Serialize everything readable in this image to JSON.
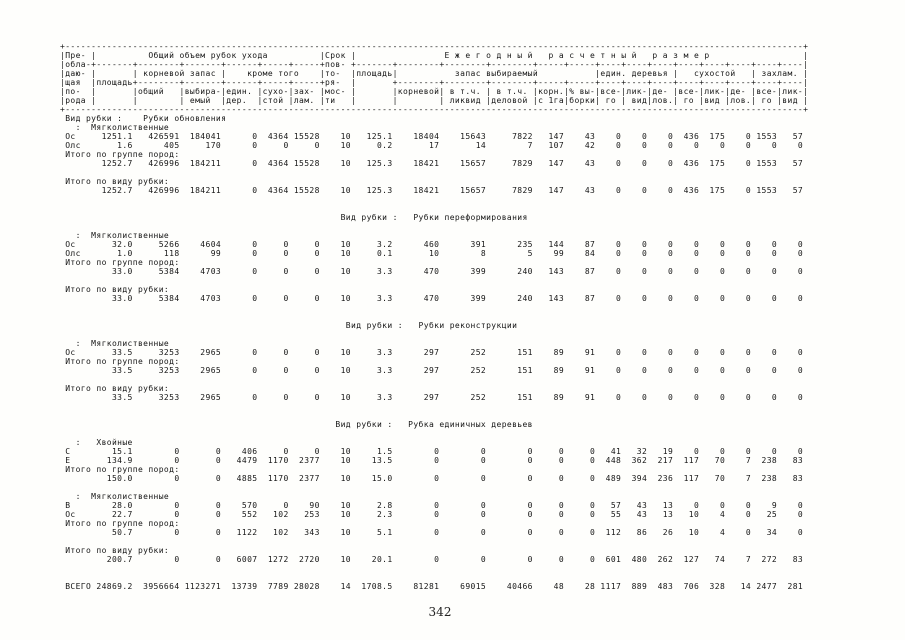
{
  "page_number": "342",
  "table": {
    "header": {
      "lines": [
        [
          [
            0,
            0,
            "Пре-",
            "|"
          ],
          [
            1,
            6,
            "Общий объем рубок ухода",
            "|"
          ],
          [
            7,
            7,
            "Срок",
            "|"
          ],
          [
            8,
            21,
            "Е ж е г о д н ы й   р а с ч е т н ы й   р а з м е р",
            "|"
          ]
        ],
        [
          [
            0,
            0,
            "обла-",
            "+"
          ],
          [
            1,
            6,
            "---",
            "+"
          ],
          [
            7,
            7,
            "пов-",
            "+"
          ],
          [
            8,
            21,
            "---",
            "|"
          ]
        ],
        [
          [
            0,
            0,
            "даю-",
            "|"
          ],
          [
            1,
            1,
            "",
            "|"
          ],
          [
            2,
            3,
            "корневой запас",
            "|"
          ],
          [
            4,
            6,
            "кроме того",
            "|"
          ],
          [
            7,
            7,
            "то-",
            "|"
          ],
          [
            8,
            8,
            "площадь",
            "|"
          ],
          [
            9,
            13,
            "запас выбираемый",
            "|"
          ],
          [
            14,
            16,
            "един. деревья",
            "|"
          ],
          [
            17,
            19,
            "сухостой",
            "|"
          ],
          [
            20,
            21,
            "захлам.",
            "|"
          ]
        ],
        [
          [
            0,
            0,
            "щая",
            "|"
          ],
          [
            1,
            1,
            "площадь",
            "+"
          ],
          [
            2,
            6,
            "---",
            "+"
          ],
          [
            7,
            7,
            "ря-",
            "|"
          ],
          [
            8,
            8,
            "",
            "+"
          ],
          [
            9,
            21,
            "---",
            "|"
          ]
        ],
        [
          [
            0,
            0,
            "по-",
            "|"
          ],
          [
            1,
            1,
            "",
            "|"
          ],
          [
            2,
            2,
            "общий",
            "|"
          ],
          [
            3,
            3,
            "выбира-",
            "|"
          ],
          [
            4,
            4,
            "един.",
            "|"
          ],
          [
            5,
            5,
            "сухо-",
            "|"
          ],
          [
            6,
            6,
            "зах-",
            "|"
          ],
          [
            7,
            7,
            "мос-",
            "|"
          ],
          [
            8,
            8,
            "",
            "|"
          ],
          [
            9,
            9,
            "корневой",
            "|"
          ],
          [
            10,
            10,
            " в т.ч.",
            "|"
          ],
          [
            11,
            11,
            " в т.ч.",
            "|"
          ],
          [
            12,
            12,
            "корн.",
            "|"
          ],
          [
            13,
            13,
            "% вы-",
            "|"
          ],
          [
            14,
            14,
            "все-",
            "|"
          ],
          [
            15,
            15,
            "лик-",
            "|"
          ],
          [
            16,
            16,
            "де-",
            "|"
          ],
          [
            17,
            17,
            "все-",
            "|"
          ],
          [
            18,
            18,
            "лик-",
            "|"
          ],
          [
            19,
            19,
            "де-",
            "|"
          ],
          [
            20,
            20,
            "все-",
            "|"
          ],
          [
            21,
            21,
            "лик-",
            "|"
          ]
        ],
        [
          [
            0,
            0,
            "рода",
            "|"
          ],
          [
            1,
            1,
            "",
            "|"
          ],
          [
            2,
            2,
            "",
            "|"
          ],
          [
            3,
            3,
            " емый",
            "|"
          ],
          [
            4,
            4,
            "дер.",
            "|"
          ],
          [
            5,
            5,
            "стой",
            "|"
          ],
          [
            6,
            6,
            "лам.",
            "|"
          ],
          [
            7,
            7,
            "ти",
            "|"
          ],
          [
            8,
            8,
            "",
            "|"
          ],
          [
            9,
            9,
            "",
            "|"
          ],
          [
            10,
            10,
            " ликвид",
            "|"
          ],
          [
            11,
            11,
            "деловой",
            "|"
          ],
          [
            12,
            12,
            "с 1га",
            "|"
          ],
          [
            13,
            13,
            "борки",
            "|"
          ],
          [
            14,
            14,
            " го",
            "|"
          ],
          [
            15,
            15,
            " вид",
            "|"
          ],
          [
            16,
            16,
            "лов.",
            "|"
          ],
          [
            17,
            17,
            " го",
            "|"
          ],
          [
            18,
            18,
            "вид",
            "|"
          ],
          [
            19,
            19,
            "лов.",
            "|"
          ],
          [
            20,
            20,
            " го",
            "|"
          ],
          [
            21,
            21,
            "вид",
            "|"
          ]
        ]
      ]
    },
    "sections": [
      {
        "title": "Вид рубки :    Рубки обновления",
        "title_centered": false,
        "groups": [
          {
            "species_group": "   :  Мягколиственные",
            "rows": [
              {
                "label": "Ос",
                "values": [
                  "1251.1",
                  "426591",
                  "184041",
                  "0",
                  "4364",
                  "15528",
                  "10",
                  "125.1",
                  "18404",
                  "15643",
                  "7822",
                  "147",
                  "43",
                  "0",
                  "0",
                  "0",
                  "436",
                  "175",
                  "0",
                  "1553",
                  "57"
                ]
              },
              {
                "label": "Олс",
                "values": [
                  "1.6",
                  "405",
                  "170",
                  "0",
                  "0",
                  "0",
                  "10",
                  "0.2",
                  "17",
                  "14",
                  "7",
                  "107",
                  "42",
                  "0",
                  "0",
                  "0",
                  "0",
                  "0",
                  "0",
                  "0",
                  "0"
                ]
              }
            ],
            "subtotal_label": "Итого по группе пород:",
            "subtotal_values": [
              "1252.7",
              "426996",
              "184211",
              "0",
              "4364",
              "15528",
              "10",
              "125.3",
              "18421",
              "15657",
              "7829",
              "147",
              "43",
              "0",
              "0",
              "0",
              "436",
              "175",
              "0",
              "1553",
              "57"
            ]
          }
        ],
        "total_label": "Итого по виду рубки:",
        "total_values": [
          "1252.7",
          "426996",
          "184211",
          "0",
          "4364",
          "15528",
          "10",
          "125.3",
          "18421",
          "15657",
          "7829",
          "147",
          "43",
          "0",
          "0",
          "0",
          "436",
          "175",
          "0",
          "1553",
          "57"
        ]
      },
      {
        "title": "Вид рубки :   Рубки переформирования",
        "title_centered": true,
        "groups": [
          {
            "species_group": "   :  Мягколиственные",
            "rows": [
              {
                "label": "Ос",
                "values": [
                  "32.0",
                  "5266",
                  "4604",
                  "0",
                  "0",
                  "0",
                  "10",
                  "3.2",
                  "460",
                  "391",
                  "235",
                  "144",
                  "87",
                  "0",
                  "0",
                  "0",
                  "0",
                  "0",
                  "0",
                  "0",
                  "0"
                ]
              },
              {
                "label": "Олс",
                "values": [
                  "1.0",
                  "118",
                  "99",
                  "0",
                  "0",
                  "0",
                  "10",
                  "0.1",
                  "10",
                  "8",
                  "5",
                  "99",
                  "84",
                  "0",
                  "0",
                  "0",
                  "0",
                  "0",
                  "0",
                  "0",
                  "0"
                ]
              }
            ],
            "subtotal_label": "Итого по группе пород:",
            "subtotal_values": [
              "33.0",
              "5384",
              "4703",
              "0",
              "0",
              "0",
              "10",
              "3.3",
              "470",
              "399",
              "240",
              "143",
              "87",
              "0",
              "0",
              "0",
              "0",
              "0",
              "0",
              "0",
              "0"
            ]
          }
        ],
        "total_label": "Итого по виду рубки:",
        "total_values": [
          "33.0",
          "5384",
          "4703",
          "0",
          "0",
          "0",
          "10",
          "3.3",
          "470",
          "399",
          "240",
          "143",
          "87",
          "0",
          "0",
          "0",
          "0",
          "0",
          "0",
          "0",
          "0"
        ]
      },
      {
        "title": "Вид рубки :   Рубки реконструкции",
        "title_centered": true,
        "groups": [
          {
            "species_group": "   :  Мягколиственные",
            "rows": [
              {
                "label": "Ос",
                "values": [
                  "33.5",
                  "3253",
                  "2965",
                  "0",
                  "0",
                  "0",
                  "10",
                  "3.3",
                  "297",
                  "252",
                  "151",
                  "89",
                  "91",
                  "0",
                  "0",
                  "0",
                  "0",
                  "0",
                  "0",
                  "0",
                  "0"
                ]
              }
            ],
            "subtotal_label": "Итого по группе пород:",
            "subtotal_values": [
              "33.5",
              "3253",
              "2965",
              "0",
              "0",
              "0",
              "10",
              "3.3",
              "297",
              "252",
              "151",
              "89",
              "91",
              "0",
              "0",
              "0",
              "0",
              "0",
              "0",
              "0",
              "0"
            ]
          }
        ],
        "total_label": "Итого по виду рубки:",
        "total_values": [
          "33.5",
          "3253",
          "2965",
          "0",
          "0",
          "0",
          "10",
          "3.3",
          "297",
          "252",
          "151",
          "89",
          "91",
          "0",
          "0",
          "0",
          "0",
          "0",
          "0",
          "0",
          "0"
        ]
      },
      {
        "title": "Вид рубки :   Рубка единичных деревьев",
        "title_centered": true,
        "groups": [
          {
            "species_group": "   :   Хвойные",
            "rows": [
              {
                "label": "С",
                "values": [
                  "15.1",
                  "0",
                  "0",
                  "406",
                  "0",
                  "0",
                  "10",
                  "1.5",
                  "0",
                  "0",
                  "0",
                  "0",
                  "0",
                  "41",
                  "32",
                  "19",
                  "0",
                  "0",
                  "0",
                  "0",
                  "0"
                ]
              },
              {
                "label": "Е",
                "values": [
                  "134.9",
                  "0",
                  "0",
                  "4479",
                  "1170",
                  "2377",
                  "10",
                  "13.5",
                  "0",
                  "0",
                  "0",
                  "0",
                  "0",
                  "448",
                  "362",
                  "217",
                  "117",
                  "70",
                  "7",
                  "238",
                  "83"
                ]
              }
            ],
            "subtotal_label": "Итого по группе пород:",
            "subtotal_values": [
              "150.0",
              "0",
              "0",
              "4885",
              "1170",
              "2377",
              "10",
              "15.0",
              "0",
              "0",
              "0",
              "0",
              "0",
              "489",
              "394",
              "236",
              "117",
              "70",
              "7",
              "238",
              "83"
            ]
          },
          {
            "species_group": "   :  Мягколиственные",
            "rows": [
              {
                "label": "В",
                "values": [
                  "28.0",
                  "0",
                  "0",
                  "570",
                  "0",
                  "90",
                  "10",
                  "2.8",
                  "0",
                  "0",
                  "0",
                  "0",
                  "0",
                  "57",
                  "43",
                  "13",
                  "0",
                  "0",
                  "0",
                  "9",
                  "0"
                ]
              },
              {
                "label": "Ос",
                "values": [
                  "22.7",
                  "0",
                  "0",
                  "552",
                  "102",
                  "253",
                  "10",
                  "2.3",
                  "0",
                  "0",
                  "0",
                  "0",
                  "0",
                  "55",
                  "43",
                  "13",
                  "10",
                  "4",
                  "0",
                  "25",
                  "0"
                ]
              }
            ],
            "subtotal_label": "Итого по группе пород:",
            "subtotal_values": [
              "50.7",
              "0",
              "0",
              "1122",
              "102",
              "343",
              "10",
              "5.1",
              "0",
              "0",
              "0",
              "0",
              "0",
              "112",
              "86",
              "26",
              "10",
              "4",
              "0",
              "34",
              "0"
            ]
          }
        ],
        "total_label": "Итого по виду рубки:",
        "total_values": [
          "200.7",
          "0",
          "0",
          "6007",
          "1272",
          "2720",
          "10",
          "20.1",
          "0",
          "0",
          "0",
          "0",
          "0",
          "601",
          "480",
          "262",
          "127",
          "74",
          "7",
          "272",
          "83"
        ]
      }
    ],
    "grand_total_label": "ВСЕГО",
    "grand_total": [
      "24869.2",
      "3956664",
      "1123271",
      "13739",
      "7789",
      "28028",
      "14",
      "1708.5",
      "81281",
      "69015",
      "40466",
      "48",
      "28",
      "1117",
      "889",
      "483",
      "706",
      "328",
      "14",
      "2477",
      "281"
    ]
  }
}
